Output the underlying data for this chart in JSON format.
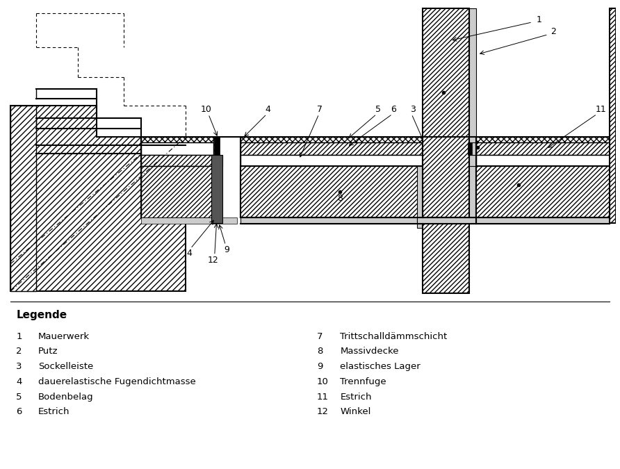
{
  "bg_color": "#ffffff",
  "line_color": "#000000",
  "legend_title": "Legende",
  "legend_items_left": [
    [
      "1",
      "Mauerwerk"
    ],
    [
      "2",
      "Putz"
    ],
    [
      "3",
      "Sockelleiste"
    ],
    [
      "4",
      "dauerelastische Fugendichtmasse"
    ],
    [
      "5",
      "Bodenbelag"
    ],
    [
      "6",
      "Estrich"
    ]
  ],
  "legend_items_right": [
    [
      "7",
      "Trittschalldämmschicht"
    ],
    [
      "8",
      "Massivdecke"
    ],
    [
      "9",
      "elastisches Lager"
    ],
    [
      "10",
      "Trennfuge"
    ],
    [
      "11",
      "Estrich"
    ],
    [
      "12",
      "Winkel"
    ]
  ]
}
